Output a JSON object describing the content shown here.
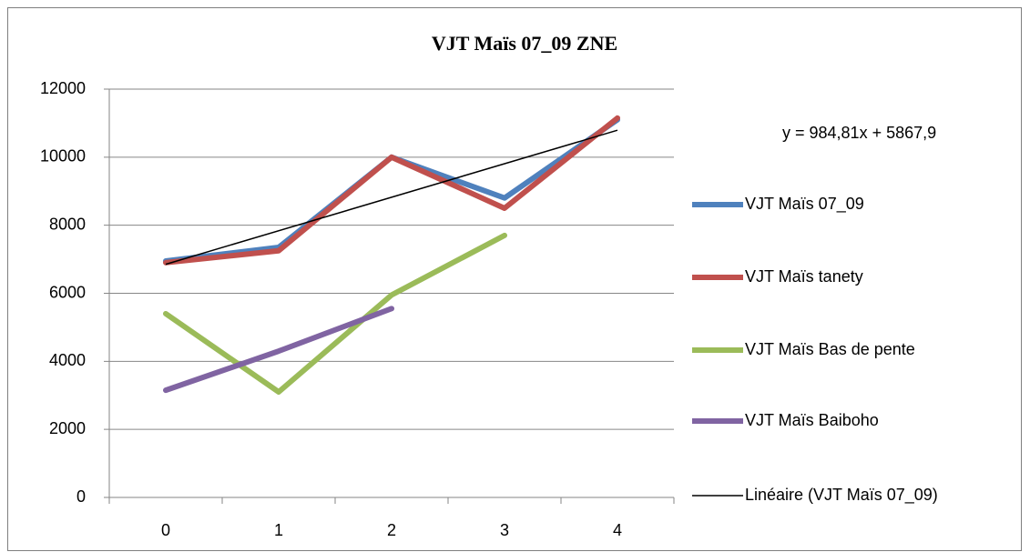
{
  "chart_data": {
    "type": "line",
    "title": "VJT Maïs 07_09 ZNE",
    "categories": [
      "0",
      "1",
      "2",
      "3",
      "4"
    ],
    "series": [
      {
        "name": "VJT Maïs 07_09",
        "color": "#4f81bd",
        "values": [
          6950,
          7350,
          10000,
          8800,
          11100
        ]
      },
      {
        "name": "VJT Maïs tanety",
        "color": "#c0504d",
        "values": [
          6900,
          7250,
          10000,
          8500,
          11150
        ]
      },
      {
        "name": "VJT Maïs Bas de pente",
        "color": "#9bbb59",
        "values": [
          5400,
          3100,
          5950,
          7700,
          null
        ]
      },
      {
        "name": "VJT Maïs Baiboho",
        "color": "#8064a2",
        "values": [
          3150,
          4300,
          5550,
          null,
          null
        ]
      }
    ],
    "trend": {
      "name": "Linéaire (VJT Maïs 07_09)",
      "color": "#000000",
      "slope": 984.81,
      "intercept": 5867.9,
      "label": "y = 984,81x + 5867,9"
    },
    "ylim": [
      0,
      12000
    ],
    "yticks": [
      0,
      2000,
      4000,
      6000,
      8000,
      10000,
      12000
    ],
    "grid": true,
    "legend": "right"
  }
}
